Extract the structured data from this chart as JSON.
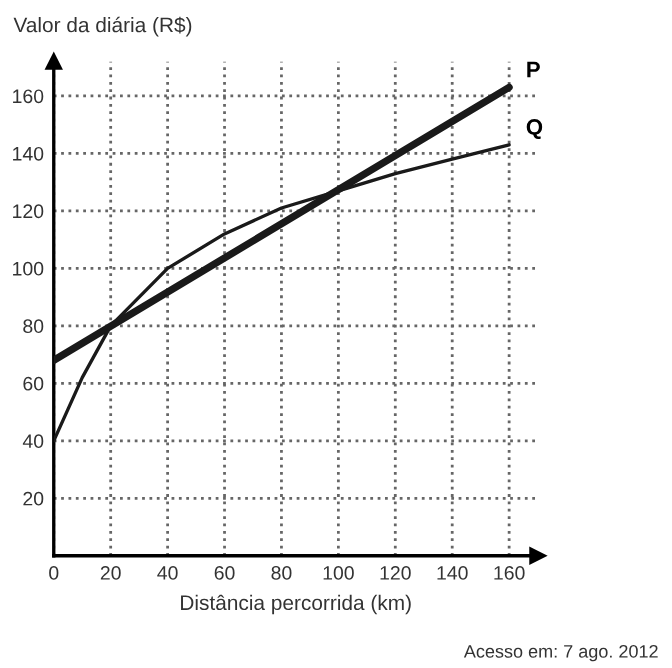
{
  "chart_data": {
    "type": "line",
    "ylabel": "Valor da diária (R$)",
    "xlabel": "Distância percorrida (km)",
    "annotations": [
      "Acesso em: 7 ago. 2012"
    ],
    "x": [
      0,
      10,
      20,
      40,
      60,
      80,
      100,
      120,
      140,
      160
    ],
    "series": [
      {
        "name": "P",
        "color": "#1a1a1a",
        "x": [
          0,
          160
        ],
        "values": [
          68,
          163
        ]
      },
      {
        "name": "Q",
        "color": "#1a1a1a",
        "values": [
          40,
          62,
          80,
          100,
          112,
          121,
          127,
          133,
          138,
          143
        ]
      }
    ],
    "xlim": [
      0,
      170
    ],
    "ylim": [
      0,
      172
    ],
    "xticks": [
      0,
      20,
      40,
      60,
      80,
      100,
      120,
      140,
      160
    ],
    "yticks": [
      20,
      40,
      60,
      80,
      100,
      120,
      140,
      160
    ],
    "grid": true,
    "legend": false,
    "marker": "none",
    "line_style": "solid"
  }
}
